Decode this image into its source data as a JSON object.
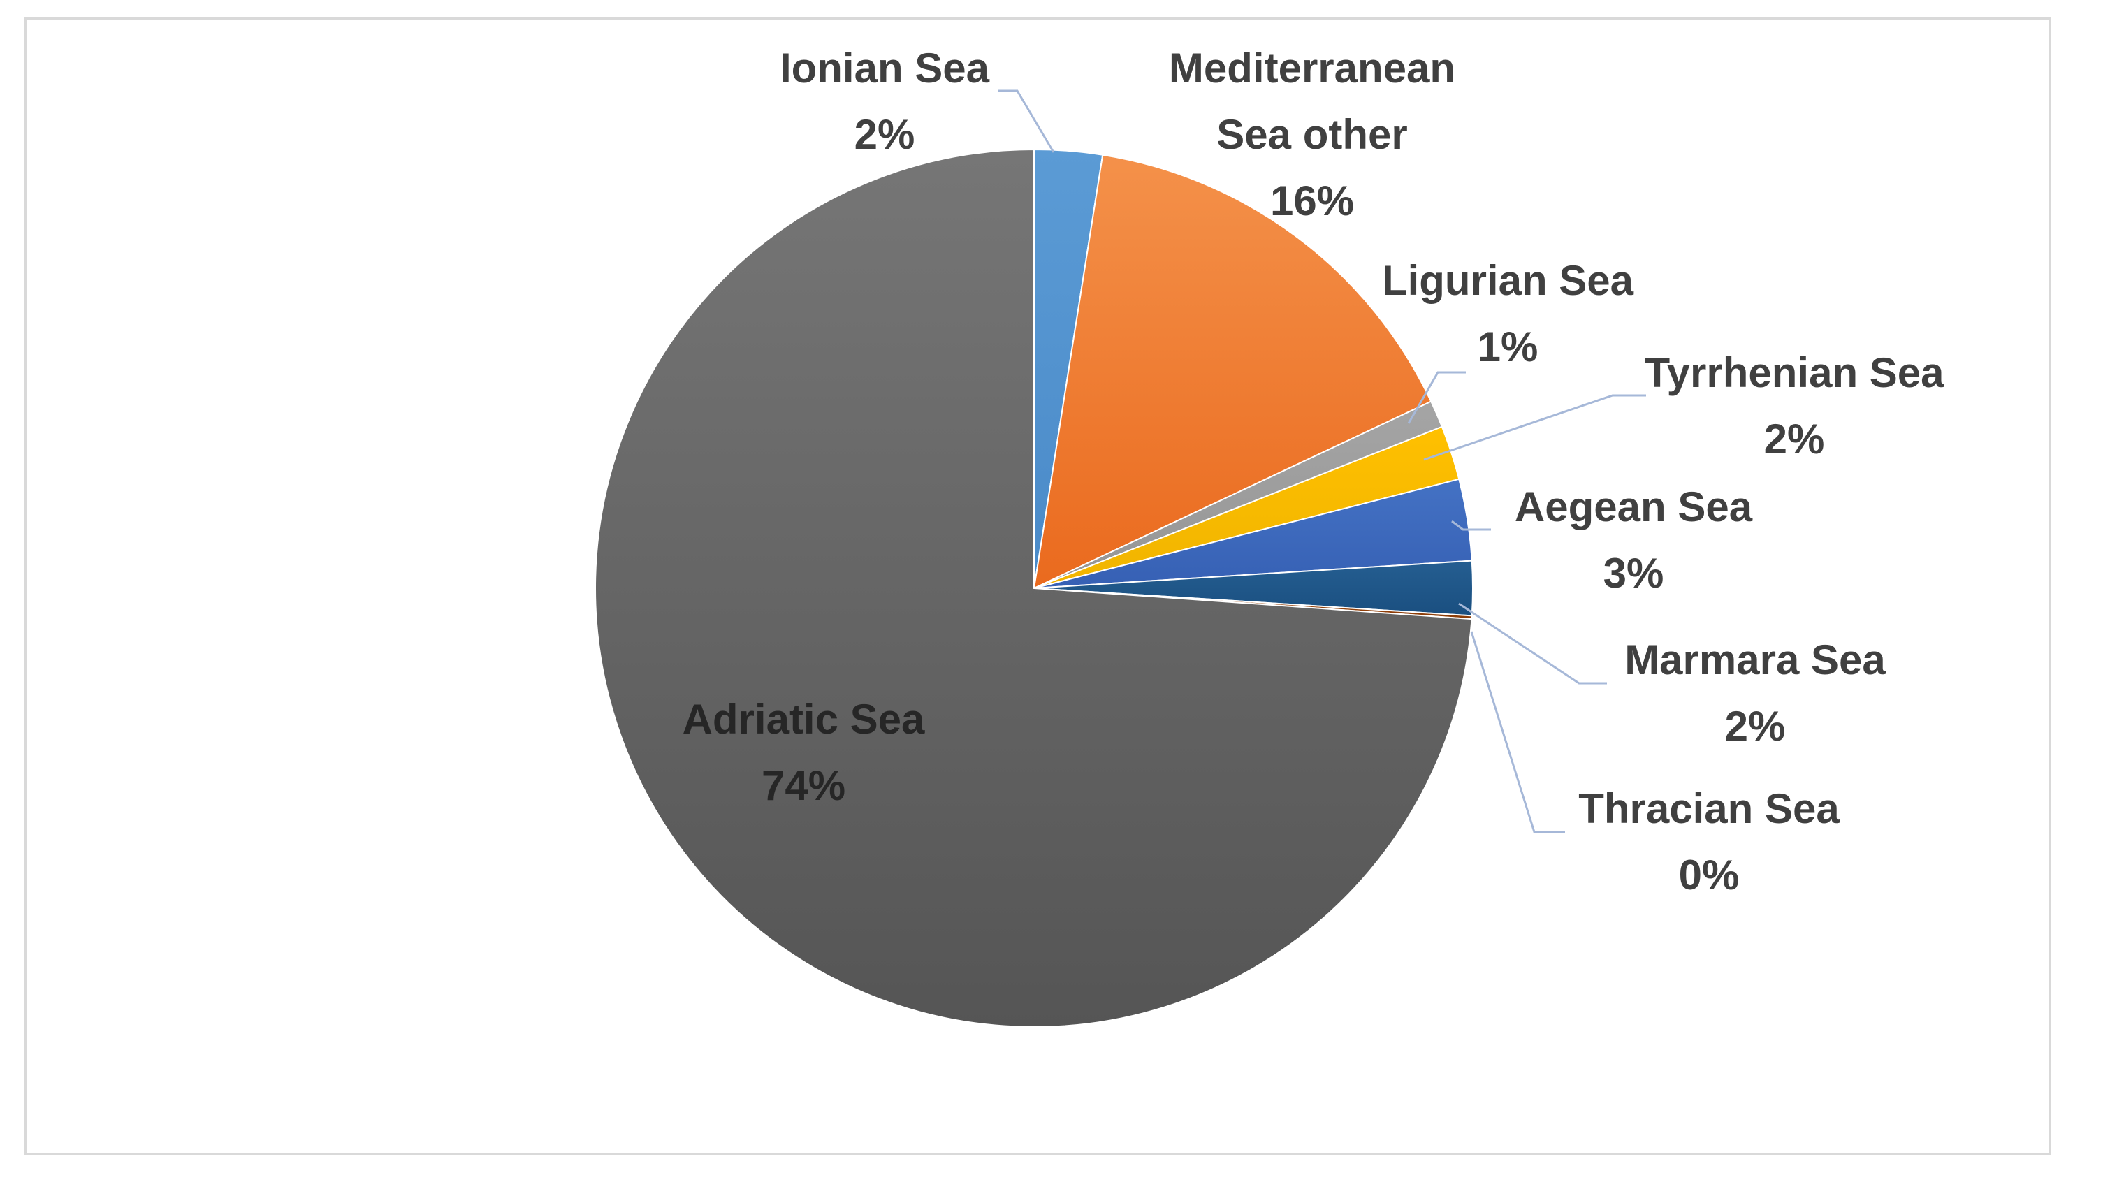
{
  "chart_data": {
    "type": "pie",
    "start_angle_deg": 0,
    "direction": "clockwise",
    "slices": [
      {
        "label_lines": [
          "Ionian Sea"
        ],
        "value_label": "2%",
        "value": 2.5,
        "color": "#5b9bd5",
        "color_dark": "#4a8ac8"
      },
      {
        "label_lines": [
          "Mediterranean",
          "Sea other"
        ],
        "value_label": "16%",
        "value": 15.5,
        "color": "#f4914a",
        "color_dark": "#ea6a1e"
      },
      {
        "label_lines": [
          "Ligurian Sea"
        ],
        "value_label": "1%",
        "value": 1.0,
        "color": "#a5a5a5",
        "color_dark": "#959595"
      },
      {
        "label_lines": [
          "Tyrrhenian Sea"
        ],
        "value_label": "2%",
        "value": 2.0,
        "color": "#ffc000",
        "color_dark": "#f0b400"
      },
      {
        "label_lines": [
          "Aegean Sea"
        ],
        "value_label": "3%",
        "value": 3.0,
        "color": "#4472c4",
        "color_dark": "#3660b4"
      },
      {
        "label_lines": [
          "Marmara Sea"
        ],
        "value_label": "2%",
        "value": 2.0,
        "color": "#255e91",
        "color_dark": "#1a4f80"
      },
      {
        "label_lines": [
          "Thracian Sea"
        ],
        "value_label": "0%",
        "value": 0.12,
        "color": "#9e480e",
        "color_dark": "#8a3c08"
      },
      {
        "label_lines": [
          "Adriatic Sea"
        ],
        "value_label": "74%",
        "value": 73.88,
        "color": "#767676",
        "color_dark": "#555555"
      }
    ]
  }
}
